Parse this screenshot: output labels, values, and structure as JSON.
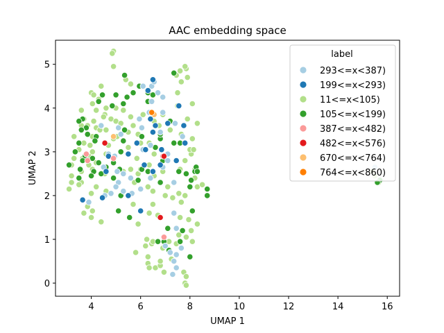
{
  "chart_data": {
    "type": "scatter",
    "title": "AAC embedding space",
    "xlabel": "UMAP 1",
    "ylabel": "UMAP 2",
    "xlim": [
      2.55,
      16.5
    ],
    "ylim": [
      -0.3,
      5.55
    ],
    "xticks": [
      4,
      6,
      8,
      10,
      12,
      14,
      16
    ],
    "yticks": [
      0,
      1,
      2,
      3,
      4,
      5
    ],
    "grid": false,
    "legend": {
      "title": "label",
      "position": "top-right",
      "entries": [
        {
          "name": "293<=x<387)",
          "color": "#a6cee3"
        },
        {
          "name": "199<=x<293)",
          "color": "#1f78b4"
        },
        {
          "name": "11<=x<105)",
          "color": "#b2df8a"
        },
        {
          "name": "105<=x<199)",
          "color": "#33a02c"
        },
        {
          "name": "387<=x<482)",
          "color": "#fb9a99"
        },
        {
          "name": "482<=x<576)",
          "color": "#e31a1c"
        },
        {
          "name": "670<=x<764)",
          "color": "#fdbf6f"
        },
        {
          "name": "764<=x<860)",
          "color": "#ff7f00"
        }
      ]
    },
    "series": [
      {
        "name": "11<=x<105)",
        "color": "#b2df8a",
        "points": [
          [
            4.9,
            5.3
          ],
          [
            4.85,
            5.25
          ],
          [
            4.9,
            4.95
          ],
          [
            5.4,
            4.65
          ],
          [
            5.6,
            4.55
          ],
          [
            4.4,
            4.5
          ],
          [
            4.0,
            4.35
          ],
          [
            4.1,
            4.3
          ],
          [
            4.3,
            4.2
          ],
          [
            4.05,
            4.1
          ],
          [
            4.6,
            4.0
          ],
          [
            5.0,
            4.0
          ],
          [
            5.3,
            3.95
          ],
          [
            4.2,
            3.95
          ],
          [
            3.6,
            3.95
          ],
          [
            4.55,
            3.85
          ],
          [
            4.5,
            3.8
          ],
          [
            3.7,
            3.75
          ],
          [
            4.1,
            3.7
          ],
          [
            4.8,
            3.75
          ],
          [
            5.0,
            3.7
          ],
          [
            5.2,
            3.65
          ],
          [
            3.85,
            3.6
          ],
          [
            4.2,
            3.55
          ],
          [
            3.6,
            3.6
          ],
          [
            4.35,
            3.5
          ],
          [
            4.6,
            3.5
          ],
          [
            5.5,
            3.45
          ],
          [
            4.05,
            3.35
          ],
          [
            3.3,
            3.35
          ],
          [
            4.9,
            3.3
          ],
          [
            3.7,
            3.2
          ],
          [
            3.95,
            3.15
          ],
          [
            4.7,
            3.15
          ],
          [
            3.5,
            3.05
          ],
          [
            4.05,
            3.0
          ],
          [
            4.6,
            2.95
          ],
          [
            3.9,
            2.9
          ],
          [
            3.3,
            2.85
          ],
          [
            3.65,
            2.85
          ],
          [
            4.2,
            2.75
          ],
          [
            3.9,
            2.7
          ],
          [
            3.2,
            2.7
          ],
          [
            4.05,
            2.6
          ],
          [
            3.6,
            2.55
          ],
          [
            3.2,
            2.45
          ],
          [
            4.55,
            2.5
          ],
          [
            5.3,
            2.55
          ],
          [
            5.6,
            2.6
          ],
          [
            5.9,
            2.5
          ],
          [
            3.6,
            2.3
          ],
          [
            3.2,
            2.3
          ],
          [
            3.5,
            2.25
          ],
          [
            4.2,
            2.2
          ],
          [
            3.1,
            2.15
          ],
          [
            4.0,
            2.05
          ],
          [
            4.6,
            2.1
          ],
          [
            3.85,
            1.75
          ],
          [
            3.7,
            1.6
          ],
          [
            4.05,
            1.65
          ],
          [
            4.0,
            1.5
          ],
          [
            4.4,
            1.4
          ],
          [
            5.7,
            1.8
          ],
          [
            5.9,
            1.35
          ],
          [
            5.75,
            2.3
          ],
          [
            6.0,
            2.6
          ],
          [
            6.3,
            2.2
          ],
          [
            6.5,
            2.1
          ],
          [
            6.5,
            1.8
          ],
          [
            6.35,
            1.6
          ],
          [
            6.7,
            1.55
          ],
          [
            6.55,
            2.45
          ],
          [
            6.35,
            2.7
          ],
          [
            6.55,
            2.95
          ],
          [
            6.0,
            3.2
          ],
          [
            6.35,
            3.2
          ],
          [
            5.9,
            3.4
          ],
          [
            5.7,
            3.6
          ],
          [
            5.6,
            3.8
          ],
          [
            6.1,
            3.85
          ],
          [
            6.35,
            3.9
          ],
          [
            6.55,
            3.7
          ],
          [
            6.75,
            3.6
          ],
          [
            6.9,
            3.85
          ],
          [
            7.2,
            3.5
          ],
          [
            6.9,
            2.55
          ],
          [
            7.0,
            2.0
          ],
          [
            7.1,
            2.2
          ],
          [
            7.3,
            1.95
          ],
          [
            7.55,
            2.05
          ],
          [
            7.8,
            2.0
          ],
          [
            7.65,
            1.85
          ],
          [
            7.6,
            1.5
          ],
          [
            7.95,
            1.45
          ],
          [
            8.05,
            1.2
          ],
          [
            7.85,
            1.05
          ],
          [
            8.1,
            0.95
          ],
          [
            8.3,
            1.35
          ],
          [
            7.15,
            0.95
          ],
          [
            6.9,
            0.8
          ],
          [
            6.45,
            0.9
          ],
          [
            6.5,
            0.95
          ],
          [
            6.25,
            1.0
          ],
          [
            6.2,
            0.85
          ],
          [
            6.3,
            0.6
          ],
          [
            6.3,
            0.45
          ],
          [
            6.35,
            0.35
          ],
          [
            6.6,
            0.35
          ],
          [
            6.8,
            0.4
          ],
          [
            6.8,
            0.5
          ],
          [
            7.25,
            0.55
          ],
          [
            7.45,
            0.9
          ],
          [
            7.55,
            1.1
          ],
          [
            7.75,
            0.25
          ],
          [
            7.85,
            0.15
          ],
          [
            7.8,
            0.0
          ],
          [
            7.85,
            -0.05
          ],
          [
            6.95,
            0.25
          ],
          [
            5.8,
            0.7
          ],
          [
            7.6,
            2.6
          ],
          [
            7.8,
            2.8
          ],
          [
            8.05,
            2.95
          ],
          [
            8.2,
            2.6
          ],
          [
            8.2,
            2.4
          ],
          [
            8.3,
            2.2
          ],
          [
            8.0,
            3.05
          ],
          [
            7.65,
            3.4
          ],
          [
            7.75,
            3.6
          ],
          [
            7.9,
            3.75
          ],
          [
            7.5,
            4.05
          ],
          [
            7.5,
            4.35
          ],
          [
            7.65,
            4.6
          ],
          [
            7.6,
            4.85
          ],
          [
            7.85,
            4.9
          ],
          [
            7.9,
            4.7
          ],
          [
            7.8,
            4.95
          ],
          [
            7.45,
            4.75
          ],
          [
            8.1,
            4.1
          ],
          [
            8.3,
            3.65
          ],
          [
            8.1,
            3.3
          ],
          [
            8.15,
            3.05
          ],
          [
            8.5,
            2.25
          ],
          [
            5.05,
            3.35
          ],
          [
            5.5,
            3.1
          ],
          [
            5.85,
            2.85
          ],
          [
            15.4,
            2.55
          ],
          [
            15.5,
            2.45
          ],
          [
            15.65,
            2.3
          ]
        ]
      },
      {
        "name": "105<=x<199)",
        "color": "#33a02c",
        "points": [
          [
            7.35,
            4.8
          ],
          [
            5.35,
            4.75
          ],
          [
            5.7,
            4.35
          ],
          [
            5.95,
            4.5
          ],
          [
            5.45,
            4.25
          ],
          [
            5.0,
            4.3
          ],
          [
            5.3,
            4.1
          ],
          [
            4.45,
            4.3
          ],
          [
            4.3,
            4.15
          ],
          [
            4.85,
            4.05
          ],
          [
            3.65,
            3.75
          ],
          [
            3.5,
            3.7
          ],
          [
            3.8,
            3.55
          ],
          [
            3.6,
            3.5
          ],
          [
            3.85,
            3.4
          ],
          [
            4.2,
            3.35
          ],
          [
            4.15,
            3.25
          ],
          [
            3.5,
            3.2
          ],
          [
            3.35,
            3.0
          ],
          [
            3.75,
            2.9
          ],
          [
            4.05,
            2.85
          ],
          [
            3.65,
            2.8
          ],
          [
            3.1,
            2.7
          ],
          [
            3.55,
            2.6
          ],
          [
            4.1,
            2.55
          ],
          [
            4.4,
            2.5
          ],
          [
            4.6,
            2.65
          ],
          [
            4.9,
            2.75
          ],
          [
            4.3,
            2.75
          ],
          [
            3.5,
            2.4
          ],
          [
            4.0,
            2.45
          ],
          [
            4.9,
            2.4
          ],
          [
            5.15,
            2.6
          ],
          [
            5.2,
            2.0
          ],
          [
            5.65,
            2.05
          ],
          [
            5.9,
            2.35
          ],
          [
            6.2,
            3.05
          ],
          [
            6.05,
            2.6
          ],
          [
            6.3,
            2.55
          ],
          [
            6.8,
            2.3
          ],
          [
            6.9,
            2.8
          ],
          [
            6.6,
            3.1
          ],
          [
            6.8,
            3.3
          ],
          [
            7.2,
            3.7
          ],
          [
            6.8,
            3.4
          ],
          [
            6.3,
            4.35
          ],
          [
            6.3,
            4.15
          ],
          [
            6.5,
            4.3
          ],
          [
            5.35,
            3.5
          ],
          [
            5.3,
            3.25
          ],
          [
            7.35,
            3.2
          ],
          [
            7.6,
            3.2
          ],
          [
            7.55,
            2.55
          ],
          [
            7.85,
            2.5
          ],
          [
            8.2,
            2.55
          ],
          [
            8.25,
            2.65
          ],
          [
            8.3,
            2.55
          ],
          [
            8.05,
            2.35
          ],
          [
            8.0,
            2.2
          ],
          [
            8.7,
            2.15
          ],
          [
            8.7,
            2.0
          ],
          [
            8.1,
            1.65
          ],
          [
            7.7,
            1.2
          ],
          [
            7.1,
            1.25
          ],
          [
            6.95,
            0.95
          ],
          [
            6.7,
            0.95
          ],
          [
            7.6,
            0.95
          ],
          [
            7.15,
            0.75
          ],
          [
            8.0,
            0.6
          ],
          [
            5.1,
            1.65
          ],
          [
            5.55,
            1.5
          ],
          [
            5.2,
            3.0
          ],
          [
            6.05,
            3.35
          ],
          [
            15.7,
            2.35
          ],
          [
            15.6,
            2.3
          ]
        ]
      },
      {
        "name": "293<=x<387)",
        "color": "#a6cee3",
        "points": [
          [
            6.1,
            4.5
          ],
          [
            6.45,
            4.5
          ],
          [
            6.55,
            4.6
          ],
          [
            6.7,
            4.35
          ],
          [
            6.9,
            4.25
          ],
          [
            6.45,
            4.15
          ],
          [
            6.9,
            3.9
          ],
          [
            6.35,
            3.9
          ],
          [
            5.95,
            3.75
          ],
          [
            6.05,
            3.55
          ],
          [
            5.1,
            3.55
          ],
          [
            5.2,
            3.4
          ],
          [
            4.4,
            3.6
          ],
          [
            4.7,
            2.95
          ],
          [
            4.95,
            2.9
          ],
          [
            4.5,
            2.65
          ],
          [
            6.8,
            3.45
          ],
          [
            6.4,
            3.15
          ],
          [
            6.1,
            3.05
          ],
          [
            7.1,
            2.95
          ],
          [
            7.1,
            2.8
          ],
          [
            6.9,
            2.65
          ],
          [
            6.4,
            2.4
          ],
          [
            6.0,
            2.15
          ],
          [
            5.65,
            2.05
          ],
          [
            5.6,
            2.4
          ],
          [
            5.3,
            2.5
          ],
          [
            5.05,
            2.55
          ],
          [
            5.1,
            2.3
          ],
          [
            5.0,
            2.2
          ],
          [
            5.3,
            2.1
          ],
          [
            4.8,
            2.05
          ],
          [
            4.55,
            2.0
          ],
          [
            3.9,
            1.85
          ],
          [
            7.7,
            3.35
          ],
          [
            7.4,
            3.65
          ],
          [
            7.35,
            2.3
          ],
          [
            7.35,
            1.6
          ],
          [
            7.45,
            1.25
          ],
          [
            7.0,
            0.85
          ],
          [
            7.2,
            0.7
          ],
          [
            7.35,
            0.5
          ],
          [
            7.45,
            0.65
          ],
          [
            7.45,
            0.35
          ],
          [
            7.3,
            0.2
          ],
          [
            7.65,
            0.8
          ],
          [
            15.5,
            2.65
          ]
        ]
      },
      {
        "name": "199<=x<293)",
        "color": "#1f78b4",
        "points": [
          [
            6.5,
            4.65
          ],
          [
            6.3,
            4.4
          ],
          [
            6.4,
            3.75
          ],
          [
            6.6,
            3.6
          ],
          [
            7.1,
            3.65
          ],
          [
            6.5,
            3.45
          ],
          [
            7.55,
            4.05
          ],
          [
            7.75,
            3.6
          ],
          [
            6.2,
            3.05
          ],
          [
            6.85,
            3.05
          ],
          [
            6.15,
            2.7
          ],
          [
            6.5,
            2.55
          ],
          [
            5.85,
            3.2
          ],
          [
            5.5,
            2.95
          ],
          [
            4.7,
            2.9
          ],
          [
            4.6,
            2.55
          ],
          [
            7.45,
            2.8
          ],
          [
            5.5,
            2.0
          ],
          [
            6.0,
            1.65
          ],
          [
            4.45,
            1.95
          ],
          [
            3.65,
            1.9
          ],
          [
            7.8,
            3.2
          ],
          [
            6.8,
            2.7
          ]
        ]
      },
      {
        "name": "387<=x<482)",
        "color": "#fb9a99",
        "points": [
          [
            3.8,
            2.95
          ],
          [
            3.85,
            2.8
          ],
          [
            6.95,
            1.05
          ],
          [
            6.9,
            2.9
          ],
          [
            4.9,
            2.85
          ]
        ]
      },
      {
        "name": "482<=x<576)",
        "color": "#e31a1c",
        "points": [
          [
            4.55,
            3.2
          ],
          [
            6.8,
            1.5
          ],
          [
            6.95,
            2.9
          ]
        ]
      },
      {
        "name": "670<=x<764)",
        "color": "#fdbf6f",
        "points": [
          [
            4.9,
            3.35
          ],
          [
            6.55,
            3.85
          ]
        ]
      },
      {
        "name": "764<=x<860)",
        "color": "#ff7f00",
        "points": [
          [
            6.45,
            3.9
          ]
        ]
      }
    ]
  }
}
